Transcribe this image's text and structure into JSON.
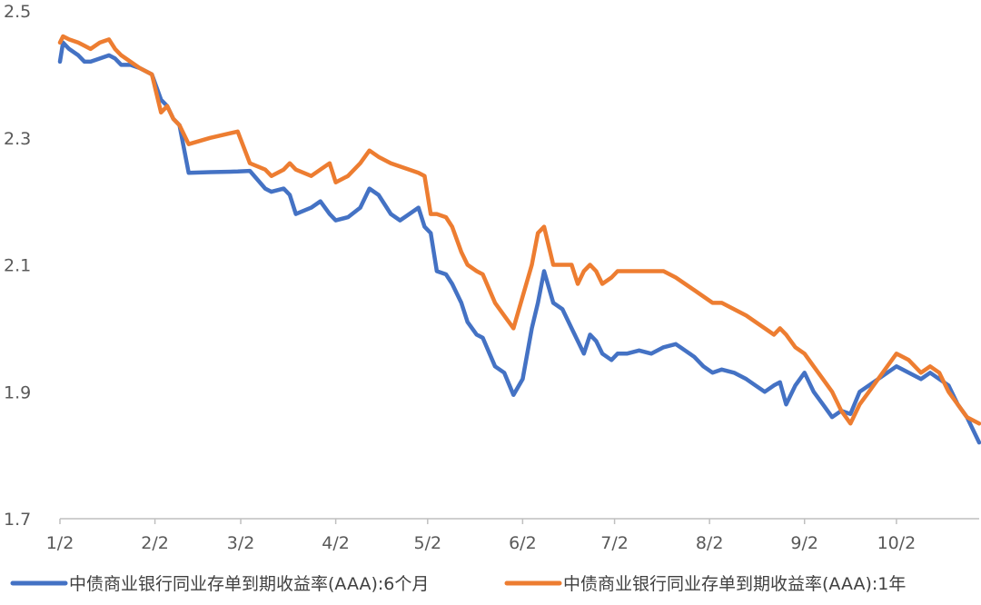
{
  "chart_data": {
    "type": "line",
    "title": "",
    "xlabel": "",
    "ylabel": "",
    "ylim": [
      1.7,
      2.5
    ],
    "yticks": [
      "1.7",
      "1.9",
      "2.1",
      "2.3",
      "2.5"
    ],
    "grid": false,
    "legend_position": "bottom",
    "x_axis": {
      "type": "date",
      "tick_labels": [
        "1/2",
        "2/2",
        "3/2",
        "4/2",
        "5/2",
        "6/2",
        "7/2",
        "8/2",
        "9/2",
        "10/2"
      ],
      "tick_dates": [
        "01-02",
        "02-02",
        "03-02",
        "04-02",
        "05-02",
        "06-02",
        "07-02",
        "08-02",
        "09-02",
        "10-02"
      ],
      "range": [
        "01-02",
        "10-29"
      ]
    },
    "series": [
      {
        "name": "中债商业银行同业存单到期收益率(AAA):6个月",
        "color": "#4472C4",
        "points": [
          [
            "01-02",
            2.42
          ],
          [
            "01-03",
            2.45
          ],
          [
            "01-05",
            2.44
          ],
          [
            "01-08",
            2.43
          ],
          [
            "01-10",
            2.42
          ],
          [
            "01-12",
            2.42
          ],
          [
            "01-15",
            2.425
          ],
          [
            "01-18",
            2.43
          ],
          [
            "01-20",
            2.425
          ],
          [
            "01-22",
            2.415
          ],
          [
            "01-25",
            2.415
          ],
          [
            "01-28",
            2.41
          ],
          [
            "02-01",
            2.4
          ],
          [
            "02-04",
            2.36
          ],
          [
            "02-06",
            2.35
          ],
          [
            "02-08",
            2.33
          ],
          [
            "02-10",
            2.32
          ],
          [
            "02-13",
            2.245
          ],
          [
            "02-20",
            2.246
          ],
          [
            "03-01",
            2.247
          ],
          [
            "03-05",
            2.248
          ],
          [
            "03-10",
            2.22
          ],
          [
            "03-12",
            2.215
          ],
          [
            "03-16",
            2.22
          ],
          [
            "03-18",
            2.21
          ],
          [
            "03-20",
            2.18
          ],
          [
            "03-25",
            2.19
          ],
          [
            "03-28",
            2.2
          ],
          [
            "03-31",
            2.18
          ],
          [
            "04-02",
            2.17
          ],
          [
            "04-06",
            2.175
          ],
          [
            "04-10",
            2.19
          ],
          [
            "04-13",
            2.22
          ],
          [
            "04-16",
            2.21
          ],
          [
            "04-20",
            2.18
          ],
          [
            "04-23",
            2.17
          ],
          [
            "04-26",
            2.18
          ],
          [
            "04-29",
            2.19
          ],
          [
            "05-01",
            2.16
          ],
          [
            "05-03",
            2.15
          ],
          [
            "05-05",
            2.09
          ],
          [
            "05-08",
            2.085
          ],
          [
            "05-10",
            2.07
          ],
          [
            "05-13",
            2.04
          ],
          [
            "05-15",
            2.01
          ],
          [
            "05-18",
            1.99
          ],
          [
            "05-20",
            1.985
          ],
          [
            "05-24",
            1.94
          ],
          [
            "05-27",
            1.93
          ],
          [
            "05-30",
            1.895
          ],
          [
            "06-02",
            1.92
          ],
          [
            "06-05",
            2.0
          ],
          [
            "06-07",
            2.04
          ],
          [
            "06-09",
            2.09
          ],
          [
            "06-12",
            2.04
          ],
          [
            "06-15",
            2.03
          ],
          [
            "06-18",
            2.0
          ],
          [
            "06-20",
            1.98
          ],
          [
            "06-22",
            1.96
          ],
          [
            "06-24",
            1.99
          ],
          [
            "06-26",
            1.98
          ],
          [
            "06-28",
            1.96
          ],
          [
            "07-01",
            1.95
          ],
          [
            "07-03",
            1.96
          ],
          [
            "07-06",
            1.96
          ],
          [
            "07-10",
            1.965
          ],
          [
            "07-14",
            1.96
          ],
          [
            "07-18",
            1.97
          ],
          [
            "07-22",
            1.975
          ],
          [
            "07-25",
            1.965
          ],
          [
            "07-28",
            1.955
          ],
          [
            "07-31",
            1.94
          ],
          [
            "08-03",
            1.93
          ],
          [
            "08-06",
            1.935
          ],
          [
            "08-10",
            1.93
          ],
          [
            "08-14",
            1.92
          ],
          [
            "08-17",
            1.91
          ],
          [
            "08-20",
            1.9
          ],
          [
            "08-23",
            1.91
          ],
          [
            "08-25",
            1.915
          ],
          [
            "08-27",
            1.88
          ],
          [
            "08-30",
            1.91
          ],
          [
            "09-02",
            1.93
          ],
          [
            "09-05",
            1.9
          ],
          [
            "09-08",
            1.88
          ],
          [
            "09-11",
            1.86
          ],
          [
            "09-14",
            1.87
          ],
          [
            "09-17",
            1.865
          ],
          [
            "09-20",
            1.9
          ],
          [
            "09-23",
            1.91
          ],
          [
            "09-26",
            1.92
          ],
          [
            "09-29",
            1.93
          ],
          [
            "10-02",
            1.94
          ],
          [
            "10-06",
            1.93
          ],
          [
            "10-10",
            1.92
          ],
          [
            "10-13",
            1.93
          ],
          [
            "10-16",
            1.92
          ],
          [
            "10-19",
            1.91
          ],
          [
            "10-22",
            1.88
          ],
          [
            "10-25",
            1.86
          ],
          [
            "10-29",
            1.82
          ]
        ]
      },
      {
        "name": "中债商业银行同业存单到期收益率(AAA):1年",
        "color": "#ED7D31",
        "points": [
          [
            "01-02",
            2.45
          ],
          [
            "01-03",
            2.46
          ],
          [
            "01-05",
            2.455
          ],
          [
            "01-08",
            2.45
          ],
          [
            "01-10",
            2.445
          ],
          [
            "01-12",
            2.44
          ],
          [
            "01-15",
            2.45
          ],
          [
            "01-18",
            2.455
          ],
          [
            "01-20",
            2.44
          ],
          [
            "01-22",
            2.43
          ],
          [
            "01-25",
            2.42
          ],
          [
            "01-28",
            2.41
          ],
          [
            "02-01",
            2.4
          ],
          [
            "02-04",
            2.34
          ],
          [
            "02-06",
            2.35
          ],
          [
            "02-08",
            2.33
          ],
          [
            "02-10",
            2.32
          ],
          [
            "02-13",
            2.29
          ],
          [
            "02-20",
            2.3
          ],
          [
            "03-01",
            2.31
          ],
          [
            "03-05",
            2.26
          ],
          [
            "03-10",
            2.25
          ],
          [
            "03-12",
            2.24
          ],
          [
            "03-16",
            2.25
          ],
          [
            "03-18",
            2.26
          ],
          [
            "03-20",
            2.25
          ],
          [
            "03-25",
            2.24
          ],
          [
            "03-28",
            2.25
          ],
          [
            "03-31",
            2.26
          ],
          [
            "04-02",
            2.23
          ],
          [
            "04-06",
            2.24
          ],
          [
            "04-10",
            2.26
          ],
          [
            "04-13",
            2.28
          ],
          [
            "04-16",
            2.27
          ],
          [
            "04-20",
            2.26
          ],
          [
            "04-23",
            2.255
          ],
          [
            "04-26",
            2.25
          ],
          [
            "04-29",
            2.245
          ],
          [
            "05-01",
            2.24
          ],
          [
            "05-03",
            2.18
          ],
          [
            "05-05",
            2.18
          ],
          [
            "05-08",
            2.175
          ],
          [
            "05-10",
            2.16
          ],
          [
            "05-13",
            2.12
          ],
          [
            "05-15",
            2.1
          ],
          [
            "05-18",
            2.09
          ],
          [
            "05-20",
            2.085
          ],
          [
            "05-24",
            2.04
          ],
          [
            "05-27",
            2.02
          ],
          [
            "05-30",
            2.0
          ],
          [
            "06-02",
            2.05
          ],
          [
            "06-05",
            2.1
          ],
          [
            "06-07",
            2.15
          ],
          [
            "06-09",
            2.16
          ],
          [
            "06-12",
            2.1
          ],
          [
            "06-15",
            2.1
          ],
          [
            "06-18",
            2.1
          ],
          [
            "06-20",
            2.07
          ],
          [
            "06-22",
            2.09
          ],
          [
            "06-24",
            2.1
          ],
          [
            "06-26",
            2.09
          ],
          [
            "06-28",
            2.07
          ],
          [
            "07-01",
            2.08
          ],
          [
            "07-03",
            2.09
          ],
          [
            "07-06",
            2.09
          ],
          [
            "07-10",
            2.09
          ],
          [
            "07-14",
            2.09
          ],
          [
            "07-18",
            2.09
          ],
          [
            "07-22",
            2.08
          ],
          [
            "07-25",
            2.07
          ],
          [
            "07-28",
            2.06
          ],
          [
            "07-31",
            2.05
          ],
          [
            "08-03",
            2.04
          ],
          [
            "08-06",
            2.04
          ],
          [
            "08-10",
            2.03
          ],
          [
            "08-14",
            2.02
          ],
          [
            "08-17",
            2.01
          ],
          [
            "08-20",
            2.0
          ],
          [
            "08-23",
            1.99
          ],
          [
            "08-25",
            2.0
          ],
          [
            "08-27",
            1.99
          ],
          [
            "08-30",
            1.97
          ],
          [
            "09-02",
            1.96
          ],
          [
            "09-05",
            1.94
          ],
          [
            "09-08",
            1.92
          ],
          [
            "09-11",
            1.9
          ],
          [
            "09-14",
            1.87
          ],
          [
            "09-17",
            1.85
          ],
          [
            "09-20",
            1.88
          ],
          [
            "09-23",
            1.9
          ],
          [
            "09-26",
            1.92
          ],
          [
            "09-29",
            1.94
          ],
          [
            "10-02",
            1.96
          ],
          [
            "10-06",
            1.95
          ],
          [
            "10-10",
            1.93
          ],
          [
            "10-13",
            1.94
          ],
          [
            "10-16",
            1.93
          ],
          [
            "10-19",
            1.9
          ],
          [
            "10-22",
            1.88
          ],
          [
            "10-25",
            1.86
          ],
          [
            "10-29",
            1.85
          ]
        ]
      }
    ]
  }
}
